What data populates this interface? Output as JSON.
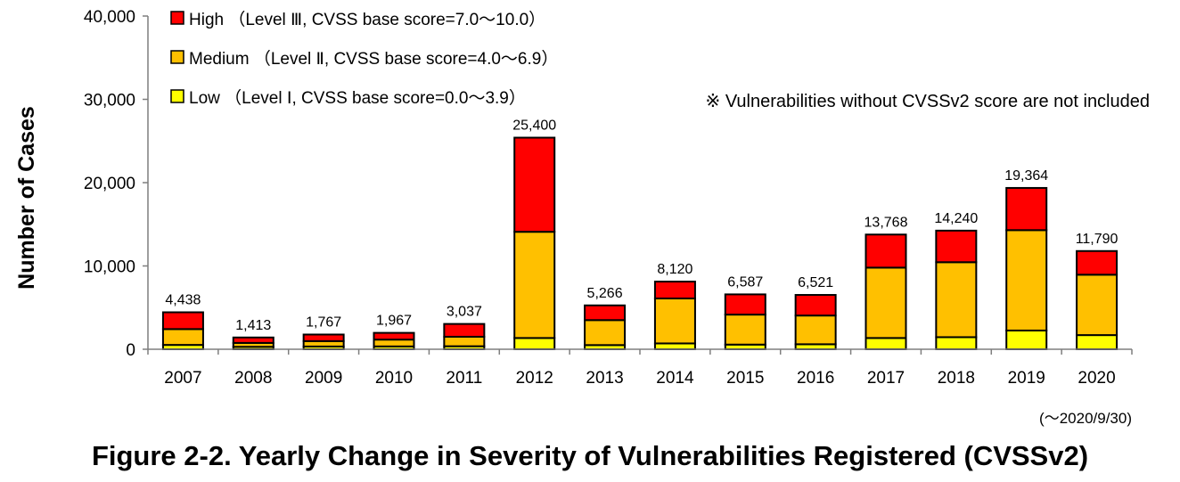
{
  "chart_data": {
    "type": "bar",
    "stacked": true,
    "categories": [
      "2007",
      "2008",
      "2009",
      "2010",
      "2011",
      "2012",
      "2013",
      "2014",
      "2015",
      "2016",
      "2017",
      "2018",
      "2019",
      "2020"
    ],
    "series": [
      {
        "name": "Low （Level Ⅰ, CVSS base score=0.0～3.9）",
        "color": "#FFFF00",
        "values": [
          520,
          290,
          330,
          340,
          360,
          1350,
          500,
          700,
          560,
          600,
          1350,
          1450,
          2250,
          1700
        ]
      },
      {
        "name": "Medium （Level Ⅱ, CVSS base score=4.0～6.9）",
        "color": "#FFC000",
        "values": [
          1900,
          470,
          650,
          820,
          1140,
          12750,
          3000,
          5400,
          3600,
          3450,
          8450,
          9000,
          12050,
          7250
        ]
      },
      {
        "name": "High （Level Ⅲ, CVSS base score=7.0～10.0）",
        "color": "#FF0000",
        "values": [
          2018,
          653,
          787,
          807,
          1537,
          11300,
          1766,
          2020,
          2427,
          2471,
          3968,
          3790,
          5064,
          2840
        ]
      }
    ],
    "totals": [
      4438,
      1413,
      1767,
      1967,
      3037,
      25400,
      5266,
      8120,
      6587,
      6521,
      13768,
      14240,
      19364,
      11790
    ],
    "total_labels": [
      "4,438",
      "1,413",
      "1,767",
      "1,967",
      "3,037",
      "25,400",
      "5,266",
      "8,120",
      "6,587",
      "6,521",
      "13,768",
      "14,240",
      "19,364",
      "11,790"
    ],
    "ylim": [
      0,
      40000
    ],
    "yticks": [
      0,
      10000,
      20000,
      30000,
      40000
    ],
    "ytick_labels": [
      "0",
      "10,000",
      "20,000",
      "30,000",
      "40,000"
    ],
    "ylabel": "Number of Cases",
    "xlabel": "",
    "legend_position": "top-left",
    "grid": false
  },
  "note": "※ Vulnerabilities without CVSSv2 score are not included",
  "period_note": "(～2020/9/30)",
  "caption": "Figure 2-2. Yearly Change in Severity of Vulnerabilities Registered (CVSSv2)"
}
